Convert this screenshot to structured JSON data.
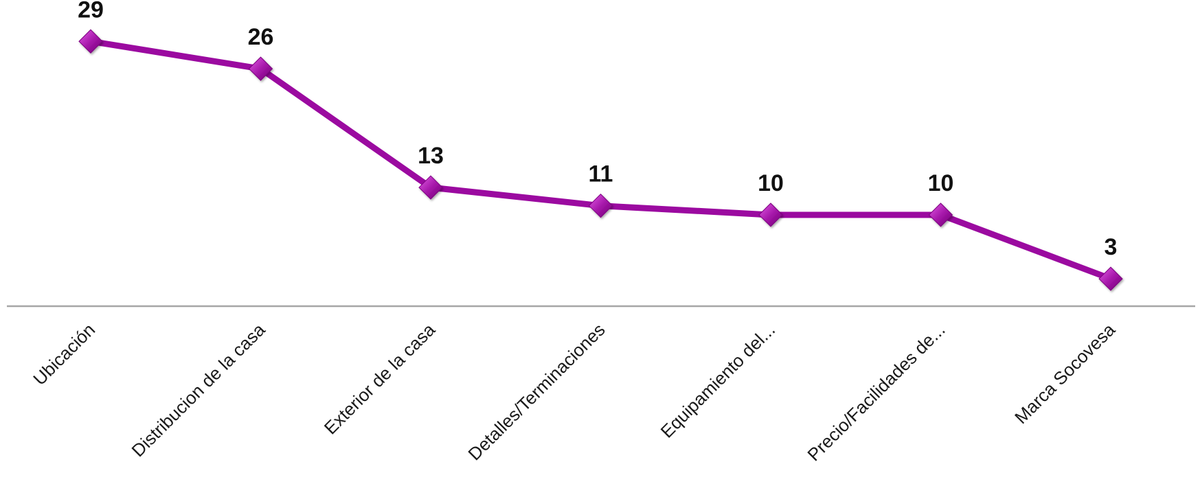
{
  "chart_data": {
    "type": "line",
    "title": "",
    "xlabel": "",
    "ylabel": "",
    "categories": [
      "Ubicación",
      "Distribucion de la casa",
      "Exterior de la casa",
      "Detalles/Terminaciones",
      "Equipamiento del...",
      "Precio/Facilidades de...",
      "Marca Socovesa"
    ],
    "series": [
      {
        "values": [
          29,
          26,
          13,
          11,
          10,
          10,
          3
        ],
        "color": "#9b0aa0",
        "marker": "diamond"
      }
    ],
    "data_labels": [
      "29",
      "26",
      "13",
      "11",
      "10",
      "10",
      "3"
    ],
    "ylim": [
      0,
      30
    ],
    "grid": false,
    "legend": "none",
    "axis_color": "#a6a6a6"
  }
}
